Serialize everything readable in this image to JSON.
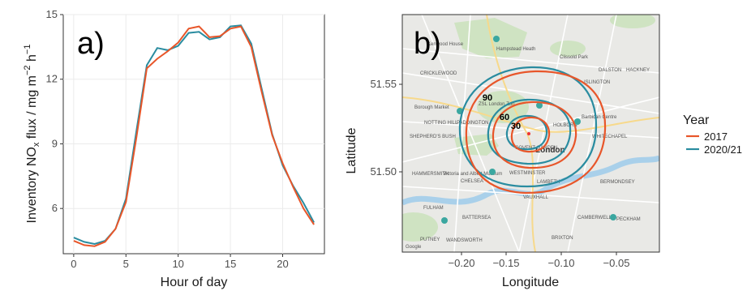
{
  "colors": {
    "s2017": "#E8562A",
    "s2020": "#2A8CA0"
  },
  "chart_data": [
    {
      "type": "line",
      "panel_label": "a)",
      "xlabel": "Hour of day",
      "ylabel_main": "Inventory NO",
      "ylabel_sub": "x",
      "ylabel_rest": " flux / mg m",
      "ylabel_sup1": "−2",
      "ylabel_h": " h",
      "ylabel_sup2": "−1",
      "xlim": [
        -1,
        24
      ],
      "ylim": [
        3.9,
        15
      ],
      "xticks": [
        "0",
        "5",
        "10",
        "15",
        "20"
      ],
      "yticks": [
        "6",
        "9",
        "12",
        "15"
      ],
      "grid": true,
      "x": [
        0,
        1,
        2,
        3,
        4,
        5,
        6,
        7,
        8,
        9,
        10,
        11,
        12,
        13,
        14,
        15,
        16,
        17,
        18,
        19,
        20,
        21,
        22,
        23
      ],
      "series": [
        {
          "name": "2017",
          "values": [
            4.5,
            4.3,
            4.25,
            4.45,
            5.05,
            6.3,
            9.3,
            12.5,
            12.95,
            13.3,
            13.7,
            14.35,
            14.45,
            13.95,
            14.0,
            14.35,
            14.45,
            13.5,
            11.4,
            9.4,
            8.1,
            7.0,
            6.0,
            5.25
          ]
        },
        {
          "name": "2020/21",
          "values": [
            4.65,
            4.45,
            4.35,
            4.5,
            5.05,
            6.45,
            9.6,
            12.65,
            13.45,
            13.35,
            13.55,
            14.15,
            14.2,
            13.85,
            13.95,
            14.45,
            14.5,
            13.65,
            11.55,
            9.45,
            8.0,
            7.05,
            6.25,
            5.35
          ]
        }
      ]
    },
    {
      "type": "contour-map",
      "panel_label": "b)",
      "xlabel": "Longitude",
      "ylabel": "Latitude",
      "xticks": [
        "−0.20",
        "−0.15",
        "−0.10",
        "−0.05"
      ],
      "yticks": [
        "51.55",
        "51.50"
      ],
      "contour_labels": [
        "90",
        "60",
        "30"
      ],
      "legend_title": "Year",
      "legend_items": [
        "2017",
        "2020/21"
      ],
      "map_labels": {
        "london": "London",
        "cricklewood": "CRICKLEWOOD",
        "notting_hill": "NOTTING HILL",
        "paddington": "PADDINGTON",
        "hammersmith": "HAMMERSMITH",
        "chelsea": "CHELSEA",
        "fulham": "FULHAM",
        "battersea": "BATTERSEA",
        "putney": "PUTNEY",
        "wandsworth": "WANDSWORTH",
        "brixton": "BRIXTON",
        "peckham": "PECKHAM",
        "camberwell": "CAMBERWELL",
        "bermondsey": "BERMONDSEY",
        "lambeth": "LAMBETH",
        "westminster": "WESTMINSTER",
        "vauxhall": "VAUXHALL",
        "islington": "ISLINGTON",
        "whitechapel": "WHITECHAPEL",
        "holborn": "HOLBORN",
        "covent_garden": "COVENT GARDEN",
        "shepherds_bush": "SHEPHERD'S BUSH",
        "dalston": "DALSTON",
        "hackney": "HACKNEY",
        "zsl": "ZSL London Zoo",
        "barbican": "Barbican Centre",
        "kenwood": "Kenwood House",
        "hampstead": "Hampstead Heath",
        "clissold": "Clissold Park",
        "victoria_albert": "Victoria and Albert Museum",
        "borough_market": "Borough Market",
        "google": "Google"
      }
    }
  ]
}
